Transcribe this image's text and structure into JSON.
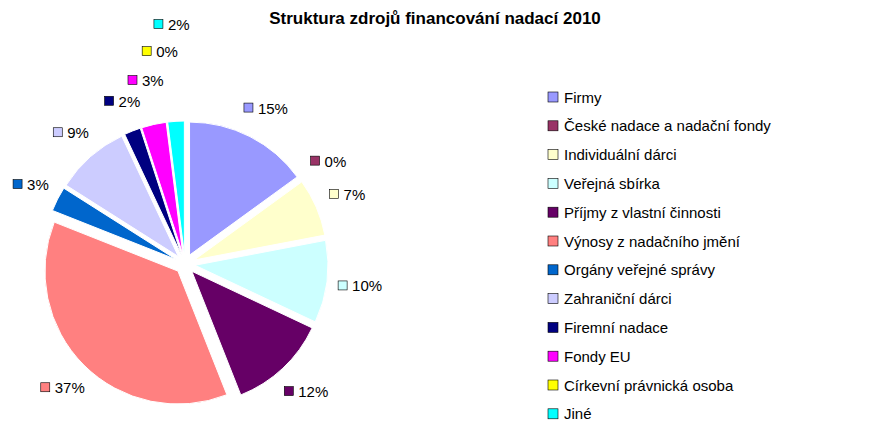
{
  "chart_data": {
    "type": "pie",
    "title": "Struktura zdrojů financování nadací 2010",
    "categories": [
      "Firmy",
      "České nadace a nadační fondy",
      "Individuální dárci",
      "Veřejná sbírka",
      "Příjmy z vlastní činnosti",
      "Výnosy z nadačního jmění",
      "Orgány veřejné správy",
      "Zahraniční dárci",
      "Firemní nadace",
      "Fondy EU",
      "Církevní právnická osoba",
      "Jiné"
    ],
    "values": [
      15,
      0,
      7,
      10,
      12,
      37,
      3,
      9,
      2,
      3,
      0,
      2
    ],
    "value_labels": [
      "15%",
      "0%",
      "7%",
      "10%",
      "12%",
      "37%",
      "3%",
      "9%",
      "2%",
      "3%",
      "0%",
      "2%"
    ],
    "colors": [
      "#9999ff",
      "#993366",
      "#ffffcc",
      "#ccffff",
      "#660066",
      "#ff8080",
      "#0066cc",
      "#ccccff",
      "#000080",
      "#ff00ff",
      "#ffff00",
      "#00ffff"
    ],
    "data_labels": true,
    "legend": "right"
  }
}
